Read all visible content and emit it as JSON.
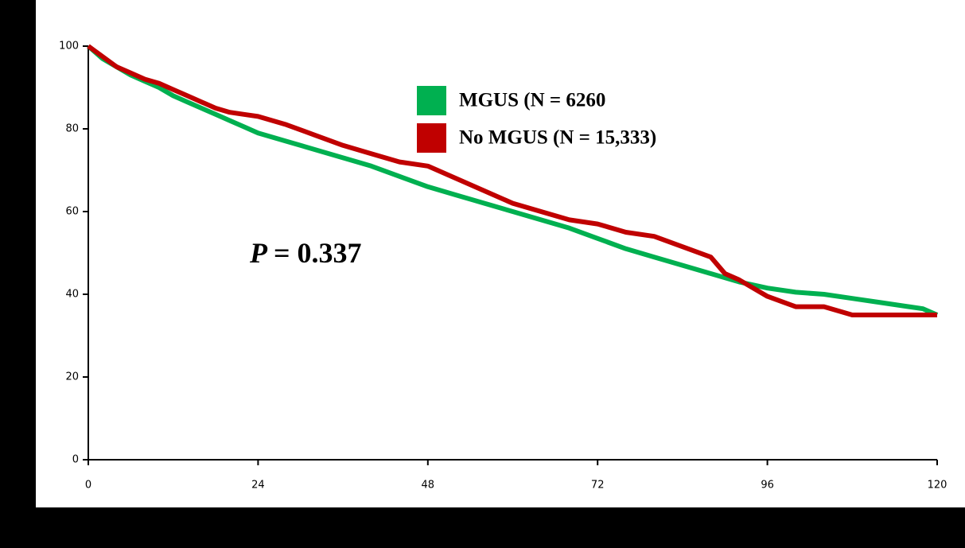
{
  "chart_data": {
    "type": "line",
    "annotation": {
      "italic": "P",
      "text": "= 0.337"
    },
    "xlim": [
      0,
      120
    ],
    "xticks": [
      0,
      24,
      48,
      72,
      96,
      120
    ],
    "ylim": [
      0,
      100
    ],
    "yticks": [
      0,
      20,
      40,
      60,
      80,
      100
    ],
    "grid": false,
    "legend": "upper-right",
    "series": [
      {
        "name": "MGUS (N = 6260",
        "color": "#00b050",
        "x": [
          0,
          2,
          4,
          6,
          8,
          10,
          12,
          14,
          16,
          18,
          20,
          22,
          24,
          28,
          32,
          36,
          40,
          44,
          48,
          52,
          56,
          60,
          64,
          68,
          72,
          76,
          80,
          84,
          88,
          92,
          96,
          100,
          104,
          108,
          112,
          116,
          118,
          120
        ],
        "values": [
          100,
          97,
          95,
          93,
          91.5,
          90,
          88,
          86.5,
          85,
          83.5,
          82,
          80.5,
          79,
          77,
          75,
          73,
          71,
          68.5,
          66,
          64,
          62,
          60,
          58,
          56,
          53.5,
          51,
          49,
          47,
          45,
          43,
          41.5,
          40.5,
          40,
          39,
          38,
          37,
          36.5,
          35
        ]
      },
      {
        "name": "No MGUS (N = 15,333)",
        "color": "#c00000",
        "x": [
          0,
          2,
          4,
          6,
          8,
          10,
          12,
          14,
          16,
          18,
          20,
          22,
          24,
          28,
          32,
          36,
          40,
          44,
          48,
          52,
          56,
          60,
          64,
          68,
          72,
          76,
          80,
          84,
          88,
          90,
          92,
          96,
          100,
          104,
          108,
          112,
          116,
          120
        ],
        "values": [
          100,
          97.5,
          95,
          93.5,
          92,
          91,
          89.5,
          88,
          86.5,
          85,
          84,
          83.5,
          83,
          81,
          78.5,
          76,
          74,
          72,
          71,
          68,
          65,
          62,
          60,
          58,
          57,
          55,
          54,
          51.5,
          49,
          45,
          43.5,
          39.5,
          37,
          37,
          35,
          35,
          35,
          35
        ]
      }
    ]
  }
}
